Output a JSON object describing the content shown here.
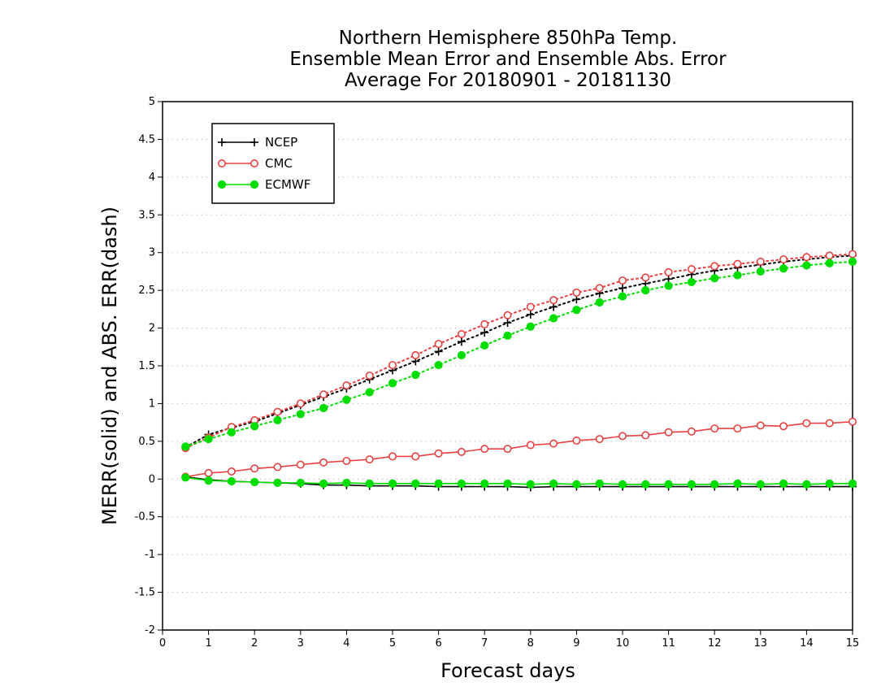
{
  "chart_data": {
    "type": "line",
    "title_lines": [
      "Northern Hemisphere 850hPa Temp.",
      "Ensemble Mean Error and Ensemble Abs. Error",
      "Average For 20180901 - 20181130"
    ],
    "xlabel": "Forecast days",
    "ylabel": "MERR(solid) and ABS. ERR(dash)",
    "xlim": [
      0,
      15
    ],
    "ylim": [
      -2,
      5
    ],
    "x_ticks": [
      "0",
      "1",
      "2",
      "3",
      "4",
      "5",
      "6",
      "7",
      "8",
      "9",
      "10",
      "11",
      "12",
      "13",
      "14",
      "15"
    ],
    "y_ticks": [
      "-2",
      "-1.5",
      "-1",
      "-0.5",
      "0",
      "0.5",
      "1",
      "1.5",
      "2",
      "2.5",
      "3",
      "3.5",
      "4",
      "4.5",
      "5"
    ],
    "grid": "horizontal dotted",
    "legend_position": "top-left",
    "x": [
      0.5,
      1,
      1.5,
      2,
      2.5,
      3,
      3.5,
      4,
      4.5,
      5,
      5.5,
      6,
      6.5,
      7,
      7.5,
      8,
      8.5,
      9,
      9.5,
      10,
      10.5,
      11,
      11.5,
      12,
      12.5,
      13,
      13.5,
      14,
      14.5,
      15
    ],
    "series": [
      {
        "name": "NCEP",
        "color": "#000000",
        "marker": "plus",
        "mean_error": [
          0.03,
          -0.01,
          -0.03,
          -0.04,
          -0.05,
          -0.06,
          -0.08,
          -0.08,
          -0.09,
          -0.09,
          -0.09,
          -0.1,
          -0.1,
          -0.1,
          -0.1,
          -0.11,
          -0.1,
          -0.1,
          -0.1,
          -0.1,
          -0.1,
          -0.1,
          -0.1,
          -0.1,
          -0.1,
          -0.1,
          -0.1,
          -0.1,
          -0.1,
          -0.1
        ],
        "abs_error": [
          0.42,
          0.59,
          0.68,
          0.76,
          0.87,
          0.98,
          1.09,
          1.2,
          1.32,
          1.44,
          1.56,
          1.69,
          1.82,
          1.94,
          2.07,
          2.18,
          2.28,
          2.38,
          2.46,
          2.53,
          2.59,
          2.65,
          2.71,
          2.76,
          2.8,
          2.84,
          2.88,
          2.91,
          2.94,
          2.96
        ]
      },
      {
        "name": "CMC",
        "color": "#e84040",
        "marker": "open-circle",
        "mean_error": [
          0.03,
          0.08,
          0.1,
          0.14,
          0.16,
          0.19,
          0.22,
          0.24,
          0.26,
          0.3,
          0.3,
          0.34,
          0.36,
          0.4,
          0.4,
          0.45,
          0.47,
          0.51,
          0.53,
          0.57,
          0.58,
          0.62,
          0.63,
          0.67,
          0.67,
          0.71,
          0.7,
          0.74,
          0.74,
          0.76
        ],
        "abs_error": [
          0.41,
          0.55,
          0.69,
          0.78,
          0.89,
          1.0,
          1.12,
          1.24,
          1.37,
          1.51,
          1.64,
          1.79,
          1.92,
          2.05,
          2.17,
          2.28,
          2.37,
          2.47,
          2.53,
          2.63,
          2.67,
          2.74,
          2.78,
          2.82,
          2.85,
          2.88,
          2.91,
          2.94,
          2.96,
          2.98
        ]
      },
      {
        "name": "ECMWF",
        "color": "#00dd00",
        "marker": "filled-circle",
        "mean_error": [
          0.02,
          -0.02,
          -0.03,
          -0.04,
          -0.05,
          -0.05,
          -0.06,
          -0.05,
          -0.06,
          -0.06,
          -0.06,
          -0.06,
          -0.06,
          -0.06,
          -0.06,
          -0.07,
          -0.06,
          -0.07,
          -0.06,
          -0.07,
          -0.07,
          -0.07,
          -0.07,
          -0.07,
          -0.06,
          -0.07,
          -0.06,
          -0.07,
          -0.06,
          -0.06
        ],
        "abs_error": [
          0.43,
          0.53,
          0.62,
          0.7,
          0.78,
          0.86,
          0.94,
          1.05,
          1.15,
          1.27,
          1.38,
          1.51,
          1.64,
          1.77,
          1.9,
          2.02,
          2.13,
          2.24,
          2.34,
          2.42,
          2.5,
          2.56,
          2.61,
          2.66,
          2.7,
          2.75,
          2.79,
          2.83,
          2.86,
          2.88
        ]
      }
    ]
  }
}
